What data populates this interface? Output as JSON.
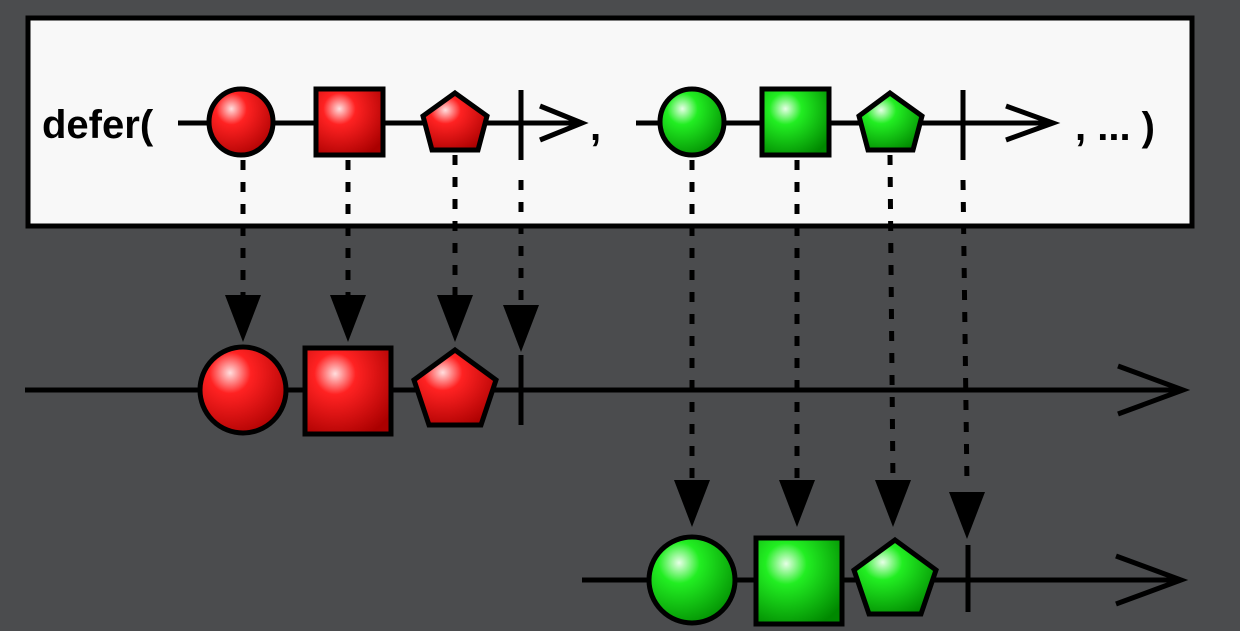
{
  "operator": {
    "label": "defer(",
    "separator": ",",
    "trailing": ", ... )"
  },
  "colors": {
    "background": "#4b4c4e",
    "red": "#ee2222",
    "green": "#22dd33",
    "box": "#f8f8f8"
  },
  "sources": [
    {
      "color": "red",
      "items": [
        "circle",
        "square",
        "pentagon"
      ],
      "completed": true
    },
    {
      "color": "green",
      "items": [
        "circle",
        "square",
        "pentagon"
      ],
      "completed": true
    }
  ]
}
